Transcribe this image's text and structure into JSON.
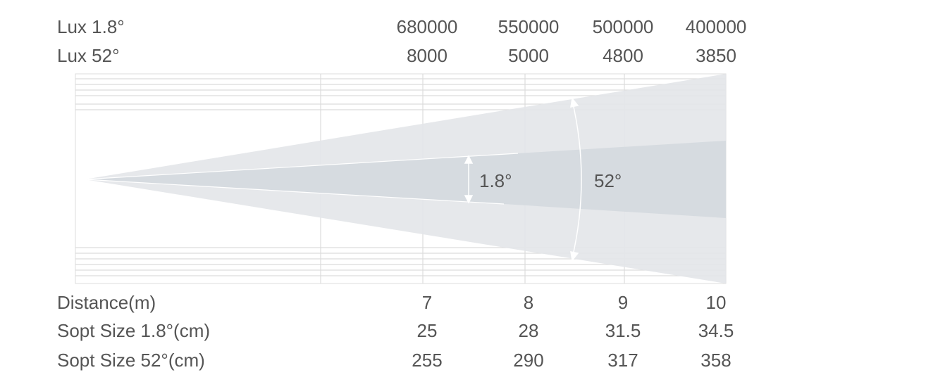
{
  "rows_top": [
    {
      "label": "Lux 1.8°",
      "values": [
        680000,
        550000,
        500000,
        400000
      ]
    },
    {
      "label": "Lux 52°",
      "values": [
        8000,
        5000,
        4800,
        3850
      ]
    }
  ],
  "beam": {
    "narrow_angle": "1.8°",
    "wide_angle": "52°"
  },
  "rows_bottom": [
    {
      "label": "Distance(m)",
      "values": [
        7,
        8,
        9,
        10
      ]
    },
    {
      "label": "Sopt Size 1.8°(cm)",
      "values": [
        25,
        28,
        31.5,
        34.5
      ]
    },
    {
      "label": "Sopt Size 52°(cm)",
      "values": [
        255,
        290,
        317,
        358
      ]
    }
  ]
}
